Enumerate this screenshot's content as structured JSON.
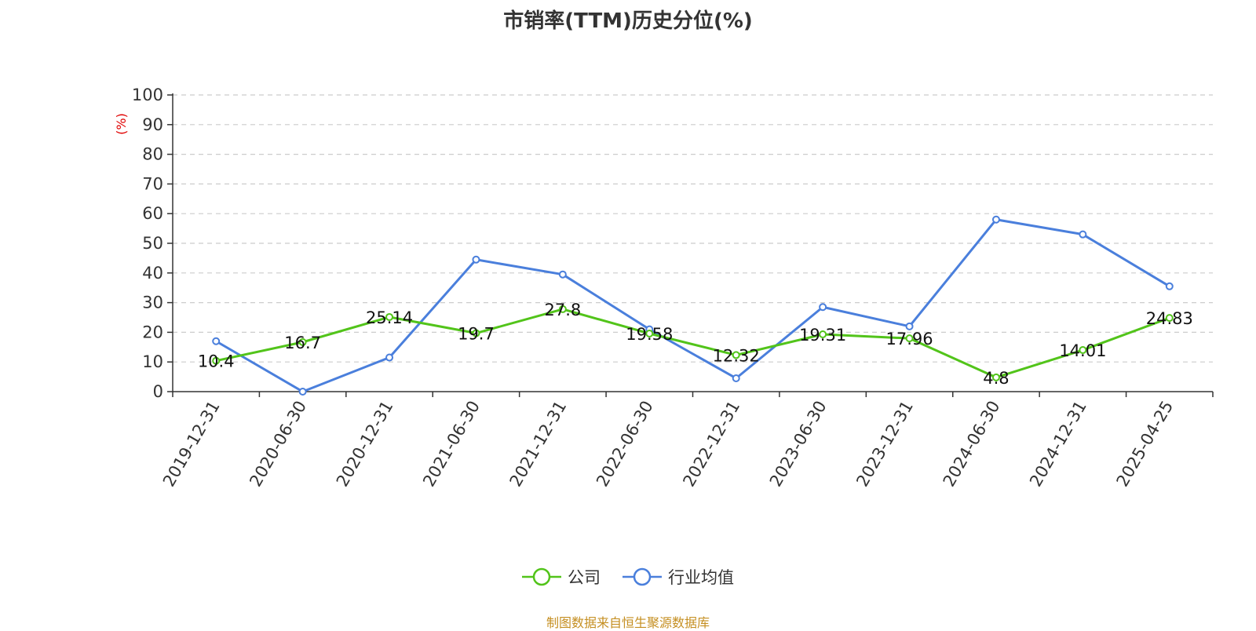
{
  "chart_data": {
    "type": "line",
    "title": "市销率(TTM)历史分位(%)",
    "ylabel": "(%)",
    "xlabel": "",
    "ylim": [
      0,
      100
    ],
    "yticks": [
      "0",
      "10",
      "20",
      "30",
      "40",
      "50",
      "60",
      "70",
      "80",
      "90",
      "100"
    ],
    "categories": [
      "2019-12-31",
      "2020-06-30",
      "2020-12-31",
      "2021-06-30",
      "2021-12-31",
      "2022-06-30",
      "2022-12-31",
      "2023-06-30",
      "2023-12-31",
      "2024-06-30",
      "2024-12-31",
      "2025-04-25"
    ],
    "grid": "horizontal dashed",
    "legend_position": "bottom-center",
    "series": [
      {
        "name": "公司",
        "color": "#52c41a",
        "values": [
          10.4,
          16.7,
          25.14,
          19.7,
          27.8,
          19.58,
          12.32,
          19.31,
          17.96,
          4.8,
          14.01,
          24.83
        ],
        "labels": [
          "10.4",
          "16.7",
          "25.14",
          "19.7",
          "27.8",
          "19.58",
          "12.32",
          "19.31",
          "17.96",
          "4.8",
          "14.01",
          "24.83"
        ]
      },
      {
        "name": "行业均值",
        "color": "#4a7fdc",
        "values": [
          17,
          0,
          11.5,
          44.5,
          39.5,
          21,
          4.5,
          28.5,
          22,
          58,
          53,
          35.5
        ]
      }
    ]
  },
  "source": "制图数据来自恒生聚源数据库"
}
